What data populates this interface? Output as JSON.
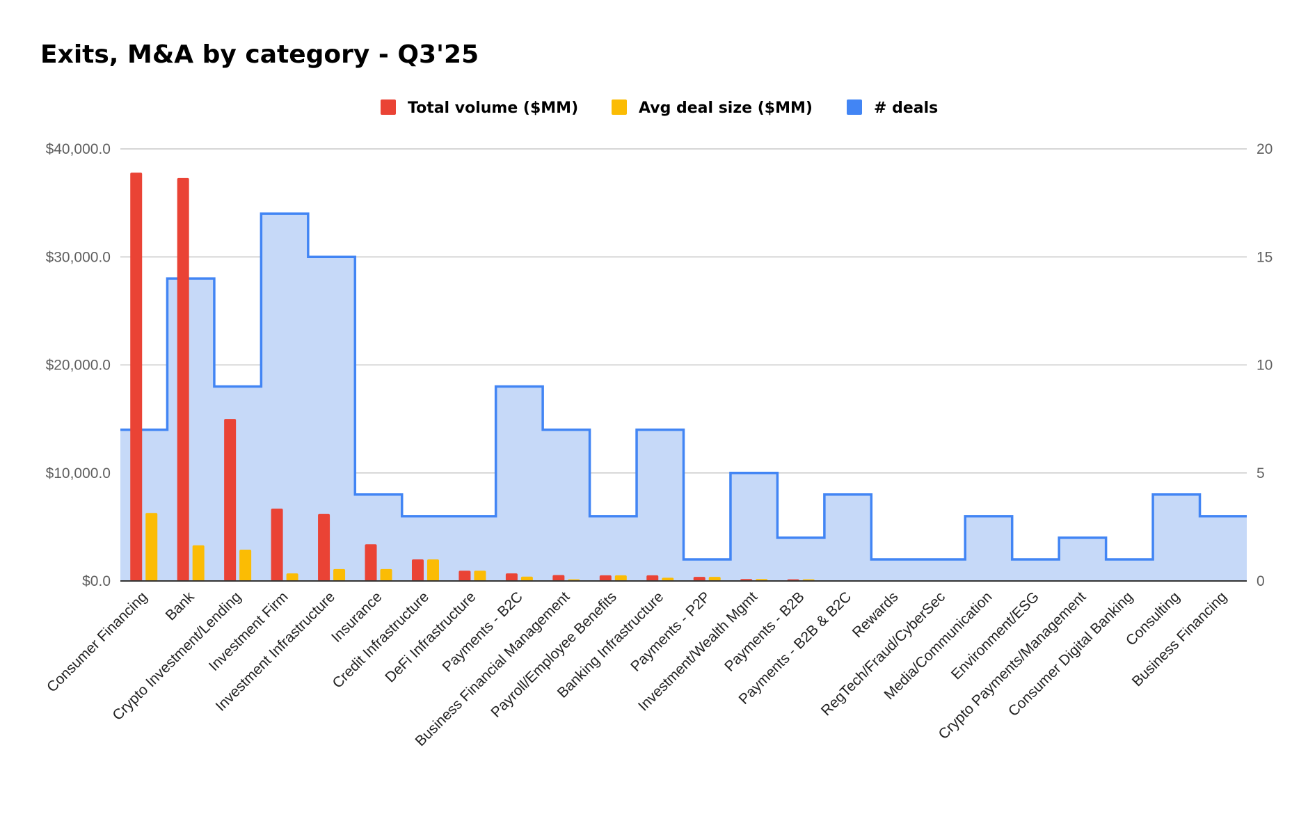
{
  "chart_data": {
    "type": "bar",
    "title": "Exits, M&A by category - Q3'25",
    "xlabel": "",
    "ylabel": "",
    "y2label": "",
    "ylim": [
      0,
      40000
    ],
    "y2lim": [
      0,
      20
    ],
    "yticks": [
      "$0.0",
      "$10,000.0",
      "$20,000.0",
      "$30,000.0",
      "$40,000.0"
    ],
    "y2ticks": [
      "0",
      "5",
      "10",
      "15",
      "20"
    ],
    "legend_position": "top-center",
    "grid": true,
    "categories": [
      "Consumer Financing",
      "Bank",
      "Crypto Investment/Lending",
      "Investment Firm",
      "Investment Infrastructure",
      "Insurance",
      "Credit Infrastructure",
      "DeFi Infrastructure",
      "Payments - B2C",
      "Business Financial Management",
      "Payroll/Employee Benefits",
      "Banking Infrastructure",
      "Payments - P2P",
      "Investment/Wealth Mgmt",
      "Payments - B2B",
      "Payments - B2B & B2C",
      "Rewards",
      "RegTech/Fraud/CyberSec",
      "Media/Communication",
      "Environment/ESG",
      "Crypto Payments/Management",
      "Consumer Digital Banking",
      "Consulting",
      "Business Financing"
    ],
    "series": [
      {
        "name": "Total volume ($MM)",
        "color": "#ea4335",
        "type": "bar",
        "axis": "left",
        "values": [
          37800,
          37300,
          15000,
          6700,
          6200,
          3400,
          2000,
          950,
          700,
          550,
          520,
          520,
          380,
          180,
          150,
          0,
          0,
          0,
          0,
          0,
          0,
          0,
          0,
          0
        ]
      },
      {
        "name": "Avg deal size ($MM)",
        "color": "#fbbc04",
        "type": "bar",
        "axis": "left",
        "values": [
          6300,
          3300,
          2900,
          700,
          1100,
          1100,
          2000,
          950,
          400,
          150,
          520,
          300,
          380,
          180,
          150,
          0,
          0,
          0,
          0,
          0,
          0,
          0,
          0,
          0
        ]
      },
      {
        "name": "# deals",
        "color": "#4285f4",
        "fill": "#c6d9f8",
        "type": "stepped-area",
        "axis": "right",
        "values": [
          7,
          14,
          9,
          17,
          15,
          4,
          3,
          3,
          9,
          7,
          3,
          7,
          1,
          5,
          2,
          4,
          1,
          1,
          3,
          1,
          2,
          1,
          4,
          3
        ]
      }
    ]
  }
}
